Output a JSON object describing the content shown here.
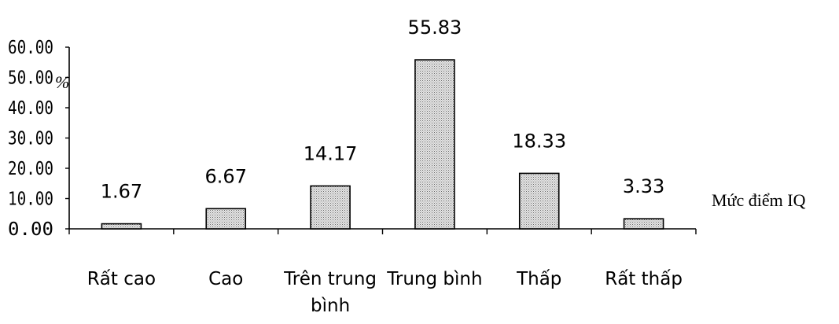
{
  "chart_data": {
    "type": "bar",
    "categories": [
      "Rất cao",
      "Cao",
      "Trên trung bình",
      "Trung bình",
      "Thấp",
      "Rất thấp"
    ],
    "category_lines": [
      [
        "Rất cao"
      ],
      [
        "Cao"
      ],
      [
        "Trên trung",
        "bình"
      ],
      [
        "Trung bình"
      ],
      [
        "Thấp"
      ],
      [
        "Rất thấp"
      ]
    ],
    "values": [
      1.67,
      6.67,
      14.17,
      55.83,
      18.33,
      3.33
    ],
    "value_labels": [
      "1.67",
      "6.67",
      "14.17",
      "55.83",
      "18.33",
      "3.33"
    ],
    "yticks": [
      "0.00",
      "10.00",
      "20.00",
      "30.00",
      "40.00",
      "50.00",
      "60.00"
    ],
    "ylim": [
      0,
      60
    ],
    "ylabel": "%",
    "xlabel": "Mức điểm IQ",
    "grid": false,
    "legend": "none",
    "bar_fill": "#cfcfcf",
    "bar_stroke": "#000000"
  }
}
